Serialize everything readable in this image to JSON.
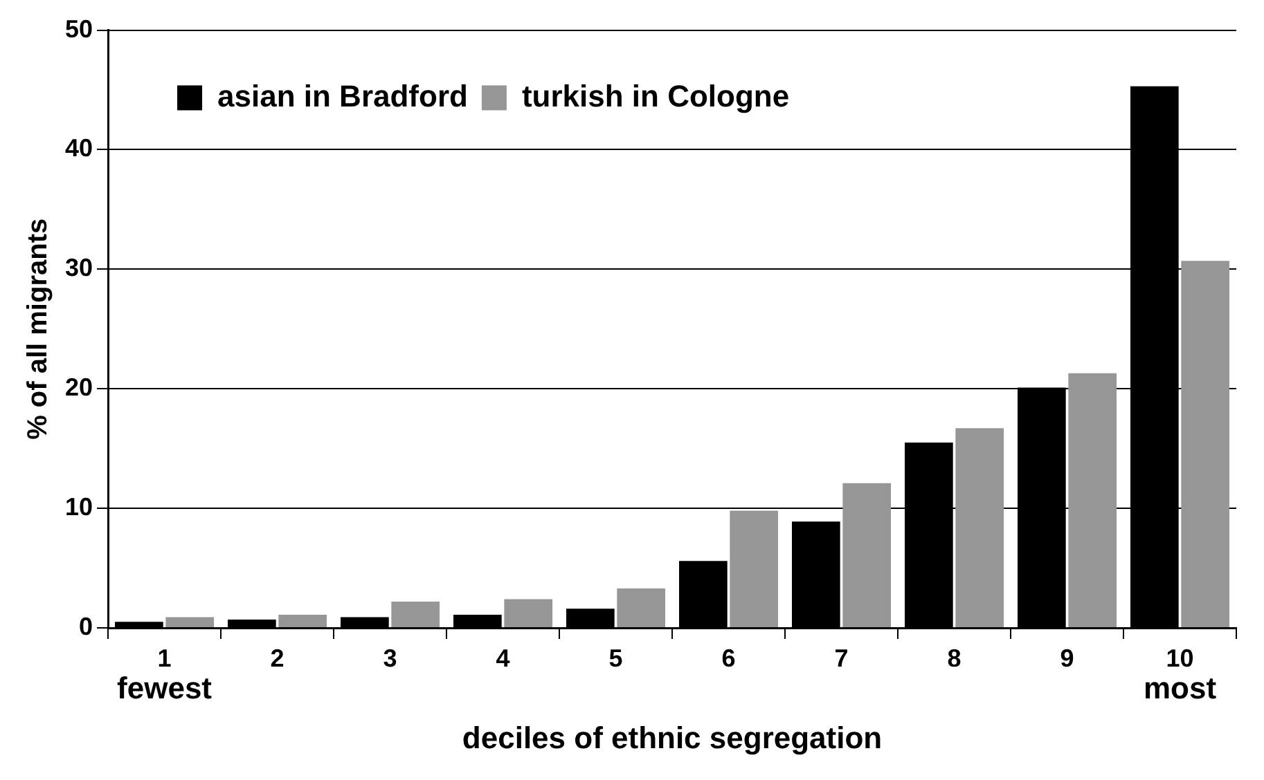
{
  "chart_data": {
    "type": "bar",
    "xlabel": "deciles of ethnic segregation",
    "ylabel": "% of all migrants",
    "categories": [
      "1",
      "2",
      "3",
      "4",
      "5",
      "6",
      "7",
      "8",
      "9",
      "10"
    ],
    "series": [
      {
        "name": "asian in Bradford",
        "color": "#000000",
        "values": [
          0.5,
          0.7,
          0.9,
          1.1,
          1.6,
          5.6,
          8.9,
          15.5,
          20.1,
          45.3
        ]
      },
      {
        "name": "turkish in Cologne",
        "color": "#969696",
        "values": [
          0.9,
          1.1,
          2.2,
          2.4,
          3.3,
          9.8,
          12.1,
          16.7,
          21.3,
          30.7
        ]
      }
    ],
    "annotations": [
      "fewest",
      "most"
    ],
    "ylim": [
      0,
      50
    ],
    "yticks": [
      0,
      10,
      20,
      30,
      40,
      50
    ],
    "grid": "y",
    "legend": "top left"
  }
}
